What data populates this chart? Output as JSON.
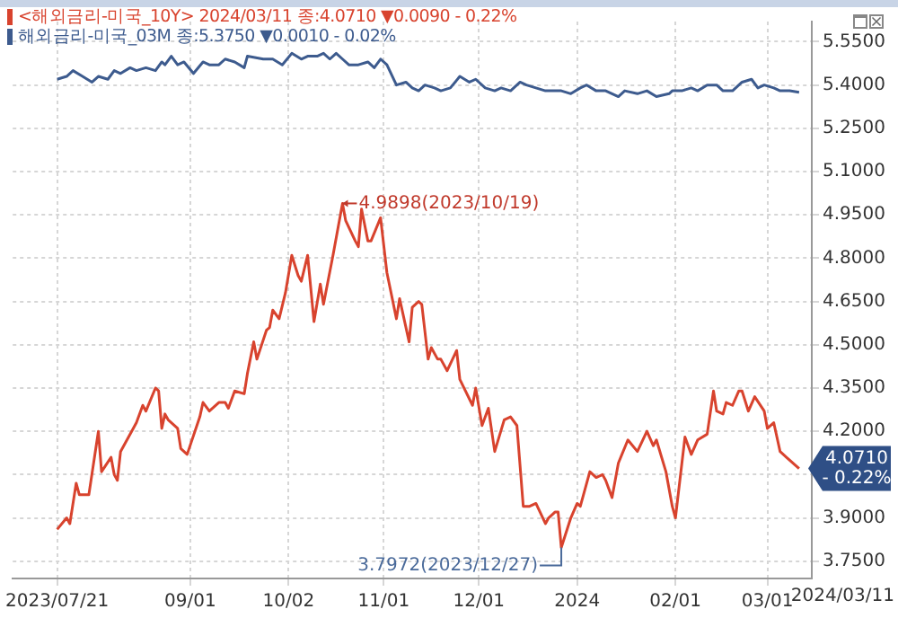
{
  "chart_data": {
    "type": "line",
    "series": [
      {
        "name": "<해외금리-미국_10Y> 2024/03/11 종:4.0710 ▼0.0090 - 0.22%",
        "color": "#d8432e",
        "x": [
          "2023-07-21",
          "2023-07-24",
          "2023-07-25",
          "2023-07-27",
          "2023-07-28",
          "2023-07-31",
          "2023-08-03",
          "2023-08-04",
          "2023-08-07",
          "2023-08-08",
          "2023-08-09",
          "2023-08-10",
          "2023-08-14",
          "2023-08-15",
          "2023-08-17",
          "2023-08-18",
          "2023-08-21",
          "2023-08-22",
          "2023-08-23",
          "2023-08-24",
          "2023-08-25",
          "2023-08-28",
          "2023-08-29",
          "2023-08-31",
          "2023-09-04",
          "2023-09-05",
          "2023-09-07",
          "2023-09-10",
          "2023-09-12",
          "2023-09-13",
          "2023-09-15",
          "2023-09-18",
          "2023-09-19",
          "2023-09-21",
          "2023-09-22",
          "2023-09-25",
          "2023-09-26",
          "2023-09-27",
          "2023-09-29",
          "2023-10-01",
          "2023-10-03",
          "2023-10-05",
          "2023-10-06",
          "2023-10-08",
          "2023-10-10",
          "2023-10-12",
          "2023-10-13",
          "2023-10-16",
          "2023-10-19",
          "2023-10-20",
          "2023-10-23",
          "2023-10-24",
          "2023-10-25",
          "2023-10-27",
          "2023-10-28",
          "2023-10-31",
          "2023-11-02",
          "2023-11-05",
          "2023-11-06",
          "2023-11-09",
          "2023-11-10",
          "2023-11-12",
          "2023-11-13",
          "2023-11-15",
          "2023-11-16",
          "2023-11-18",
          "2023-11-19",
          "2023-11-21",
          "2023-11-24",
          "2023-11-25",
          "2023-11-29",
          "2023-11-30",
          "2023-12-02",
          "2023-12-04",
          "2023-12-06",
          "2023-12-09",
          "2023-12-11",
          "2023-12-13",
          "2023-12-15",
          "2023-12-17",
          "2023-12-19",
          "2023-12-22",
          "2023-12-23",
          "2023-12-25",
          "2023-12-26",
          "2023-12-27",
          "2023-12-30",
          "2024-01-01",
          "2024-01-02",
          "2024-01-05",
          "2024-01-07",
          "2024-01-09",
          "2024-01-10",
          "2024-01-12",
          "2024-01-14",
          "2024-01-17",
          "2024-01-20",
          "2024-01-23",
          "2024-01-25",
          "2024-01-26",
          "2024-01-29",
          "2024-01-31",
          "2024-02-01",
          "2024-02-04",
          "2024-02-06",
          "2024-02-08",
          "2024-02-11",
          "2024-02-13",
          "2024-02-14",
          "2024-02-16",
          "2024-02-17",
          "2024-02-19",
          "2024-02-21",
          "2024-02-22",
          "2024-02-24",
          "2024-02-26",
          "2024-02-29",
          "2024-03-01",
          "2024-03-03",
          "2024-03-05",
          "2024-03-07",
          "2024-03-11"
        ],
        "values": [
          3.86,
          3.9,
          3.88,
          4.02,
          3.98,
          3.98,
          4.2,
          4.06,
          4.11,
          4.05,
          4.03,
          4.13,
          4.21,
          4.23,
          4.29,
          4.27,
          4.35,
          4.34,
          4.21,
          4.26,
          4.24,
          4.21,
          4.14,
          4.12,
          4.25,
          4.3,
          4.27,
          4.3,
          4.3,
          4.28,
          4.34,
          4.33,
          4.4,
          4.51,
          4.45,
          4.55,
          4.56,
          4.62,
          4.59,
          4.68,
          4.81,
          4.74,
          4.72,
          4.81,
          4.58,
          4.71,
          4.64,
          4.81,
          4.9898,
          4.93,
          4.86,
          4.84,
          4.97,
          4.86,
          4.86,
          4.94,
          4.75,
          4.59,
          4.66,
          4.51,
          4.63,
          4.65,
          4.64,
          4.45,
          4.49,
          4.45,
          4.45,
          4.41,
          4.48,
          4.38,
          4.29,
          4.35,
          4.22,
          4.28,
          4.13,
          4.24,
          4.25,
          4.22,
          3.94,
          3.94,
          3.95,
          3.88,
          3.9,
          3.92,
          3.92,
          3.7972,
          3.9,
          3.95,
          3.94,
          4.06,
          4.04,
          4.05,
          4.03,
          3.97,
          4.09,
          4.17,
          4.13,
          4.2,
          4.15,
          4.17,
          4.06,
          3.94,
          3.9,
          4.18,
          4.12,
          4.17,
          4.19,
          4.34,
          4.27,
          4.26,
          4.3,
          4.29,
          4.34,
          4.34,
          4.27,
          4.32,
          4.27,
          4.21,
          4.23,
          4.13,
          4.11,
          4.071
        ]
      },
      {
        "name": "해외금리-미국_03M 종:5.3750 ▼0.0010 - 0.02%",
        "color": "#3d5b8e",
        "x": [
          "2023-07-21",
          "2023-07-24",
          "2023-07-26",
          "2023-07-29",
          "2023-08-01",
          "2023-08-03",
          "2023-08-06",
          "2023-08-08",
          "2023-08-10",
          "2023-08-13",
          "2023-08-15",
          "2023-08-18",
          "2023-08-21",
          "2023-08-23",
          "2023-08-24",
          "2023-08-26",
          "2023-08-28",
          "2023-08-30",
          "2023-09-02",
          "2023-09-05",
          "2023-09-07",
          "2023-09-10",
          "2023-09-12",
          "2023-09-15",
          "2023-09-18",
          "2023-09-19",
          "2023-09-24",
          "2023-09-27",
          "2023-09-30",
          "2023-10-03",
          "2023-10-06",
          "2023-10-08",
          "2023-10-11",
          "2023-10-13",
          "2023-10-15",
          "2023-10-17",
          "2023-10-19",
          "2023-10-21",
          "2023-10-24",
          "2023-10-27",
          "2023-10-29",
          "2023-10-31",
          "2023-11-02",
          "2023-11-05",
          "2023-11-08",
          "2023-11-10",
          "2023-11-12",
          "2023-11-14",
          "2023-11-17",
          "2023-11-19",
          "2023-11-22",
          "2023-11-25",
          "2023-11-28",
          "2023-11-30",
          "2023-12-03",
          "2023-12-06",
          "2023-12-08",
          "2023-12-11",
          "2023-12-14",
          "2023-12-16",
          "2023-12-19",
          "2023-12-22",
          "2023-12-24",
          "2023-12-27",
          "2023-12-30",
          "2024-01-02",
          "2024-01-04",
          "2024-01-07",
          "2024-01-10",
          "2024-01-14",
          "2024-01-16",
          "2024-01-20",
          "2024-01-23",
          "2024-01-26",
          "2024-01-30",
          "2024-01-31",
          "2024-02-03",
          "2024-02-06",
          "2024-02-08",
          "2024-02-11",
          "2024-02-14",
          "2024-02-16",
          "2024-02-19",
          "2024-02-22",
          "2024-02-25",
          "2024-02-27",
          "2024-02-29",
          "2024-03-03",
          "2024-03-05",
          "2024-03-08",
          "2024-03-11"
        ],
        "values": [
          5.42,
          5.43,
          5.45,
          5.43,
          5.41,
          5.43,
          5.42,
          5.45,
          5.44,
          5.46,
          5.45,
          5.46,
          5.45,
          5.48,
          5.47,
          5.5,
          5.47,
          5.48,
          5.44,
          5.48,
          5.47,
          5.47,
          5.49,
          5.48,
          5.46,
          5.5,
          5.49,
          5.49,
          5.47,
          5.51,
          5.49,
          5.5,
          5.5,
          5.51,
          5.49,
          5.51,
          5.49,
          5.47,
          5.47,
          5.48,
          5.46,
          5.49,
          5.47,
          5.4,
          5.41,
          5.39,
          5.38,
          5.4,
          5.39,
          5.38,
          5.39,
          5.43,
          5.41,
          5.42,
          5.39,
          5.38,
          5.39,
          5.38,
          5.41,
          5.4,
          5.39,
          5.38,
          5.38,
          5.38,
          5.37,
          5.39,
          5.4,
          5.38,
          5.38,
          5.36,
          5.38,
          5.37,
          5.38,
          5.36,
          5.37,
          5.38,
          5.38,
          5.39,
          5.38,
          5.4,
          5.4,
          5.38,
          5.38,
          5.41,
          5.42,
          5.39,
          5.4,
          5.39,
          5.38,
          5.38,
          5.375
        ]
      }
    ],
    "xlim": [
      "2023-07-07",
      "2024-03-15"
    ],
    "xticks": [
      {
        "value": "2023-07-21",
        "label": "2023/07/21"
      },
      {
        "value": "2023-09-01",
        "label": "09/01"
      },
      {
        "value": "2023-10-02",
        "label": "10/02"
      },
      {
        "value": "2023-11-01",
        "label": "11/01"
      },
      {
        "value": "2023-12-01",
        "label": "12/01"
      },
      {
        "value": "2024-01-01",
        "label": "2024"
      },
      {
        "value": "2024-02-01",
        "label": "02/01"
      },
      {
        "value": "2024-03-01",
        "label": "03/01"
      }
    ],
    "ylim": [
      3.69,
      5.62
    ],
    "yticks": [
      {
        "value": 3.75,
        "label": "3.7500"
      },
      {
        "value": 3.9,
        "label": "3.9000"
      },
      {
        "value": 4.05,
        "label": null
      },
      {
        "value": 4.2,
        "label": "4.2000"
      },
      {
        "value": 4.35,
        "label": "4.3500"
      },
      {
        "value": 4.5,
        "label": "4.5000"
      },
      {
        "value": 4.65,
        "label": "4.6500"
      },
      {
        "value": 4.8,
        "label": "4.8000"
      },
      {
        "value": 4.95,
        "label": "4.9500"
      },
      {
        "value": 5.1,
        "label": "5.1000"
      },
      {
        "value": 5.25,
        "label": "5.2500"
      },
      {
        "value": 5.4,
        "label": "5.4000"
      },
      {
        "value": 5.55,
        "label": "5.5500"
      }
    ],
    "annotations": [
      {
        "text": "4.9898(2023/10/19)",
        "x": "2023-10-19",
        "y": 4.9898
      },
      {
        "text": "3.7972(2023/12/27)",
        "x": "2023-12-27",
        "y": 3.7972
      },
      {
        "text": "4.0710\n- 0.22%",
        "x": "2024-03-11",
        "y": 4.071
      },
      "2024/03/11"
    ],
    "grid": true,
    "legend": "top left",
    "marker": "none",
    "line_style": "solid"
  }
}
